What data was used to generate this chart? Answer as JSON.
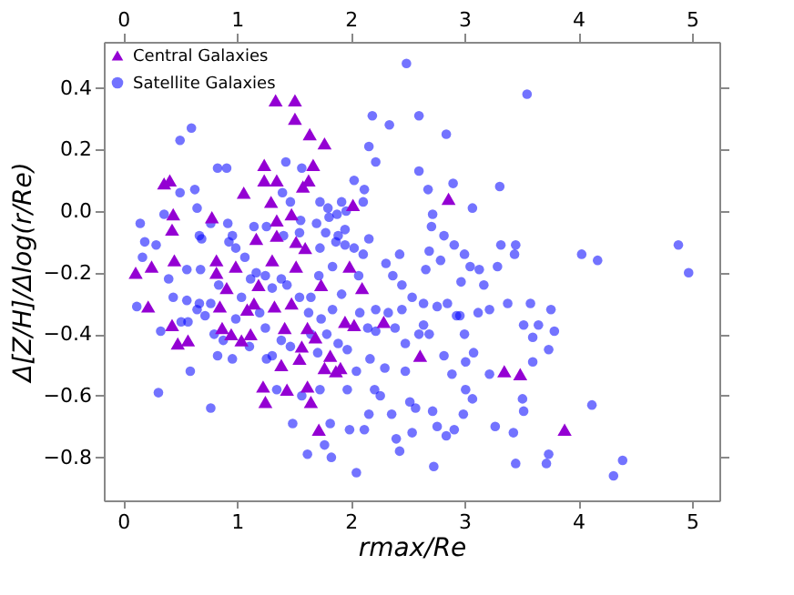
{
  "chart_data": {
    "type": "scatter",
    "xlabel": "rmax/Re",
    "ylabel": "Δ[Z/H]/Δlog(r/Re)",
    "xlim": [
      -0.17,
      5.24
    ],
    "ylim": [
      -0.94,
      0.55
    ],
    "xticks": [
      0,
      1,
      2,
      3,
      4,
      5
    ],
    "yticks": [
      {
        "value": -0.8,
        "label": "−0.8"
      },
      {
        "value": -0.6,
        "label": "−0.6"
      },
      {
        "value": -0.4,
        "label": "−0.4"
      },
      {
        "value": -0.2,
        "label": "−0.2"
      },
      {
        "value": 0,
        "label": "0.0"
      },
      {
        "value": 0.2,
        "label": "0.2"
      },
      {
        "value": 0.4,
        "label": "0.4"
      }
    ],
    "x2lim": [
      -0.17,
      5.24
    ],
    "x2ticks": [
      0,
      1,
      2,
      3,
      4,
      5
    ],
    "legend": "top left",
    "grid": false,
    "series": [
      {
        "name": "Central Galaxies",
        "color": "#9400d3",
        "marker": "triangle",
        "x": [
          0.11,
          0.22,
          0.25,
          0.36,
          0.41,
          0.44,
          0.43,
          0.45,
          0.43,
          0.48,
          0.57,
          0.78,
          0.82,
          0.85,
          0.82,
          0.87,
          0.91,
          0.95,
          0.99,
          1.04,
          1.06,
          1.09,
          1.12,
          1.15,
          1.17,
          1.19,
          1.23,
          1.24,
          1.24,
          1.25,
          1.3,
          1.31,
          1.35,
          1.35,
          1.35,
          1.33,
          1.34,
          1.39,
          1.42,
          1.44,
          1.48,
          1.48,
          1.51,
          1.51,
          1.52,
          1.52,
          1.55,
          1.57,
          1.58,
          1.6,
          1.62,
          1.62,
          1.63,
          1.64,
          1.65,
          1.67,
          1.69,
          1.72,
          1.74,
          1.77,
          1.77,
          1.82,
          1.87,
          1.91,
          1.95,
          1.99,
          2.02,
          2.03,
          2.1,
          2.29,
          2.61,
          2.86,
          3.35,
          3.49,
          3.88
        ],
        "values": [
          -0.2,
          -0.31,
          -0.18,
          0.09,
          0.1,
          -0.01,
          -0.06,
          -0.16,
          -0.37,
          -0.43,
          -0.42,
          -0.02,
          -0.16,
          -0.31,
          -0.2,
          -0.38,
          -0.25,
          -0.4,
          -0.18,
          -0.42,
          0.06,
          -0.32,
          -0.4,
          -0.3,
          -0.09,
          -0.24,
          -0.57,
          0.15,
          0.1,
          -0.62,
          0.03,
          -0.16,
          0.1,
          -0.03,
          -0.08,
          -0.31,
          0.36,
          -0.5,
          -0.38,
          -0.58,
          -0.01,
          -0.3,
          0.36,
          0.3,
          -0.18,
          -0.1,
          -0.48,
          -0.44,
          0.08,
          -0.12,
          -0.38,
          -0.57,
          0.1,
          0.25,
          -0.62,
          0.15,
          -0.41,
          -0.71,
          -0.24,
          0.22,
          -0.51,
          -0.47,
          -0.52,
          -0.51,
          -0.36,
          -0.18,
          0.02,
          -0.37,
          -0.25,
          -0.36,
          -0.47,
          0.04,
          -0.52,
          -0.53,
          -0.71
        ]
      },
      {
        "name": "Satellite Galaxies",
        "color": "#0000ff",
        "marker": "circle",
        "x": [
          2.49,
          3.55,
          0.6,
          0.5,
          2.19,
          2.6,
          2.34,
          2.84,
          2.16,
          2.22,
          2.6,
          3.31,
          2.9,
          2.68,
          2.03,
          2.12,
          0.83,
          0.91,
          1.43,
          1.57,
          0.63,
          0.5,
          0.65,
          0.36,
          0.15,
          0.19,
          0.29,
          0.17,
          0.12,
          0.31,
          0.33,
          0.59,
          0.77,
          0.57,
          0.51,
          0.67,
          0.69,
          0.77,
          0.92,
          0.96,
          0.56,
          0.68,
          0.44,
          0.67,
          0.72,
          0.83,
          0.96,
          1.11,
          1.26,
          1.31,
          1.35,
          1.49,
          1.57,
          1.62,
          1.73,
          1.77,
          1.82,
          1.83,
          1.97,
          1.99,
          2.05,
          2.12,
          2.16,
          2.21,
          2.26,
          2.36,
          2.4,
          2.43,
          2.52,
          2.54,
          2.57,
          2.72,
          2.73,
          2.76,
          2.84,
          2.91,
          2.99,
          3.07,
          3.01,
          2.89,
          3.01,
          2.82,
          3.0,
          3.08,
          3.22,
          3.27,
          3.43,
          3.45,
          3.51,
          3.52,
          3.58,
          3.52,
          3.6,
          3.6,
          3.65,
          3.76,
          3.74,
          3.79,
          3.74,
          3.72,
          4.12,
          4.03,
          4.17,
          4.39,
          4.31,
          4.88,
          4.97,
          3.32,
          3.45,
          3.44,
          3.29,
          3.13,
          3.05,
          3.07,
          3.0,
          2.91,
          2.82,
          2.71,
          2.72,
          2.69,
          2.66,
          2.79,
          2.97,
          3.17,
          3.22,
          3.38,
          3.12,
          2.93,
          2.96,
          2.76,
          2.85,
          2.64,
          2.6,
          2.54,
          2.45,
          2.43,
          2.31,
          2.37,
          2.33,
          2.22,
          2.22,
          2.39,
          2.48,
          2.48,
          2.3,
          2.17,
          2.15,
          2.08,
          2.07,
          2.11,
          2.16,
          2.03,
          1.95,
          1.95,
          1.88,
          1.81,
          1.92,
          1.8,
          1.73,
          1.7,
          1.78,
          1.84,
          1.92,
          1.84,
          1.79,
          1.74,
          1.65,
          1.71,
          1.89,
          1.97,
          2.05,
          1.47,
          1.39,
          1.25,
          1.2,
          1.31,
          1.39,
          1.44,
          1.55,
          1.63,
          1.04,
          0.99,
          0.88,
          0.8,
          0.84,
          0.77,
          1.12,
          1.17,
          1.25,
          1.07,
          1.15,
          1.26,
          1.41,
          1.56,
          1.47,
          1.4,
          1.55,
          1.73,
          1.72,
          1.65,
          1.87,
          1.89,
          1.96,
          2.11,
          0.99,
          0.93,
          0.4,
          0.56,
          0.65,
          2.45,
          2.64,
          2.69
        ],
        "values": [
          0.48,
          0.38,
          0.27,
          0.23,
          0.31,
          0.31,
          0.28,
          0.25,
          0.21,
          0.16,
          0.13,
          0.08,
          0.09,
          0.07,
          0.1,
          0.07,
          0.14,
          0.14,
          0.16,
          0.14,
          0.07,
          0.06,
          0.01,
          -0.01,
          -0.04,
          -0.1,
          -0.11,
          -0.15,
          -0.31,
          -0.59,
          -0.39,
          -0.52,
          -0.64,
          -0.36,
          -0.36,
          -0.08,
          -0.09,
          -0.04,
          -0.04,
          -0.08,
          -0.19,
          -0.19,
          -0.28,
          -0.3,
          -0.34,
          -0.47,
          -0.48,
          -0.44,
          -0.48,
          -0.47,
          -0.58,
          -0.69,
          -0.6,
          -0.79,
          -0.58,
          -0.76,
          -0.69,
          -0.8,
          -0.58,
          -0.71,
          -0.85,
          -0.71,
          -0.66,
          -0.58,
          -0.6,
          -0.66,
          -0.74,
          -0.78,
          -0.62,
          -0.72,
          -0.64,
          -0.65,
          -0.83,
          -0.7,
          -0.73,
          -0.71,
          -0.66,
          -0.61,
          -0.58,
          -0.53,
          -0.49,
          -0.47,
          -0.4,
          -0.46,
          -0.53,
          -0.7,
          -0.72,
          -0.82,
          -0.61,
          -0.65,
          -0.3,
          -0.37,
          -0.49,
          -0.41,
          -0.37,
          -0.32,
          -0.45,
          -0.39,
          -0.79,
          -0.82,
          -0.63,
          -0.14,
          -0.16,
          -0.81,
          -0.86,
          -0.11,
          -0.2,
          -0.11,
          -0.11,
          -0.14,
          -0.18,
          -0.19,
          -0.18,
          0.01,
          -0.14,
          -0.11,
          -0.08,
          -0.05,
          -0.01,
          -0.13,
          -0.19,
          -0.16,
          -0.23,
          -0.24,
          -0.32,
          -0.3,
          -0.33,
          -0.34,
          -0.34,
          -0.31,
          -0.3,
          -0.37,
          -0.4,
          -0.28,
          -0.24,
          -0.14,
          -0.17,
          -0.21,
          -0.33,
          -0.32,
          -0.39,
          -0.38,
          -0.43,
          -0.52,
          -0.51,
          -0.48,
          -0.38,
          -0.33,
          -0.21,
          -0.14,
          -0.09,
          -0.12,
          -0.11,
          -0.06,
          -0.01,
          -0.02,
          0.03,
          0.01,
          0.03,
          -0.04,
          -0.07,
          -0.18,
          -0.27,
          -0.32,
          -0.4,
          -0.35,
          -0.4,
          -0.46,
          -0.43,
          -0.45,
          -0.52,
          -0.44,
          -0.42,
          -0.38,
          -0.33,
          -0.25,
          -0.22,
          -0.24,
          -0.28,
          -0.33,
          -0.28,
          -0.35,
          -0.42,
          -0.4,
          -0.24,
          -0.3,
          -0.22,
          -0.2,
          -0.21,
          -0.15,
          -0.05,
          -0.05,
          -0.08,
          -0.03,
          0.03,
          0.06,
          -0.07,
          -0.12,
          -0.21,
          -0.28,
          -0.1,
          -0.08,
          0.0,
          0.03,
          -0.12,
          -0.1,
          -0.22,
          -0.29,
          -0.32,
          -0.32,
          -0.3,
          -0.4
        ]
      }
    ]
  }
}
